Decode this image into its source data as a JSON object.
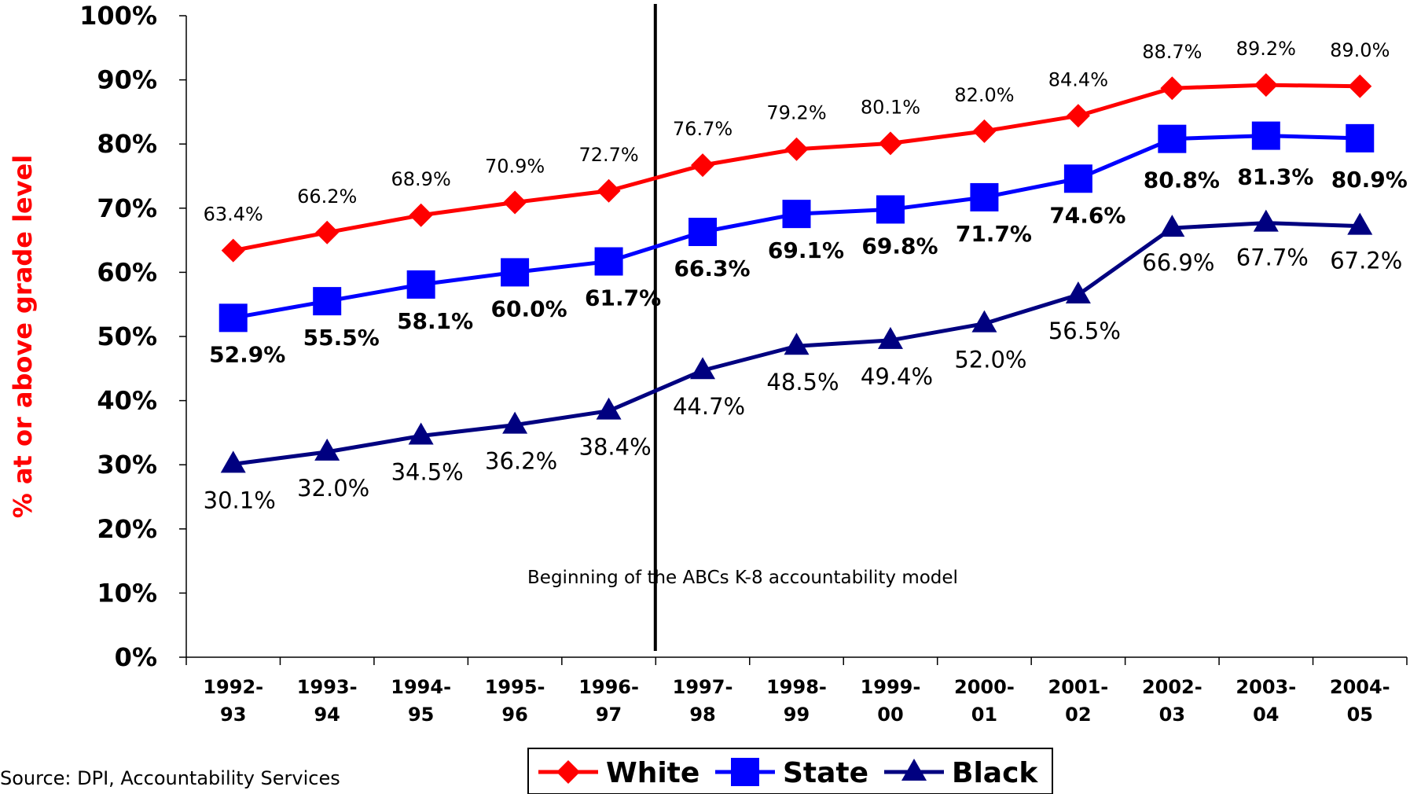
{
  "chart_data": {
    "type": "line",
    "categories": [
      [
        "1992-",
        "93"
      ],
      [
        "1993-",
        "94"
      ],
      [
        "1994-",
        "95"
      ],
      [
        "1995-",
        "96"
      ],
      [
        "1996-",
        "97"
      ],
      [
        "1997-",
        "98"
      ],
      [
        "1998-",
        "99"
      ],
      [
        "1999-",
        "00"
      ],
      [
        "2000-",
        "01"
      ],
      [
        "2001-",
        "02"
      ],
      [
        "2002-",
        "03"
      ],
      [
        "2003-",
        "04"
      ],
      [
        "2004-",
        "05"
      ]
    ],
    "series": [
      {
        "name": "White",
        "color": "#ff0000",
        "marker": "diamond",
        "values": [
          63.4,
          66.2,
          68.9,
          70.9,
          72.7,
          76.7,
          79.2,
          80.1,
          82.0,
          84.4,
          88.7,
          89.2,
          89.0
        ],
        "labels": [
          "63.4%",
          "66.2%",
          "68.9%",
          "70.9%",
          "72.7%",
          "76.7%",
          "79.2%",
          "80.1%",
          "82.0%",
          "84.4%",
          "88.7%",
          "89.2%",
          "89.0%"
        ]
      },
      {
        "name": "State",
        "color": "#0000ff",
        "marker": "square",
        "values": [
          52.9,
          55.5,
          58.1,
          60.0,
          61.7,
          66.3,
          69.1,
          69.8,
          71.7,
          74.6,
          80.8,
          81.3,
          80.9
        ],
        "labels": [
          "52.9%",
          "55.5%",
          "58.1%",
          "60.0%",
          "61.7%",
          "66.3%",
          "69.1%",
          "69.8%",
          "71.7%",
          "74.6%",
          "80.8%",
          "81.3%",
          "80.9%"
        ]
      },
      {
        "name": "Black",
        "color": "#000080",
        "marker": "triangle",
        "values": [
          30.1,
          32.0,
          34.5,
          36.2,
          38.4,
          44.7,
          48.5,
          49.4,
          52.0,
          56.5,
          66.9,
          67.7,
          67.2
        ],
        "labels": [
          "30.1%",
          "32.0%",
          "34.5%",
          "36.2%",
          "38.4%",
          "44.7%",
          "48.5%",
          "49.4%",
          "52.0%",
          "56.5%",
          "66.9%",
          "67.7%",
          "67.2%"
        ]
      }
    ],
    "ylabel": "% at or above grade level",
    "ylabel_color": "#ff0000",
    "ylim": [
      0,
      100
    ],
    "yticks": [
      "0%",
      "10%",
      "20%",
      "30%",
      "40%",
      "50%",
      "60%",
      "70%",
      "80%",
      "90%",
      "100%"
    ],
    "grid": false,
    "legend_position": "bottom-center",
    "annotation": "Beginning of the ABCs K-8 accountability model",
    "source": "Source: DPI, Accountability Services"
  }
}
